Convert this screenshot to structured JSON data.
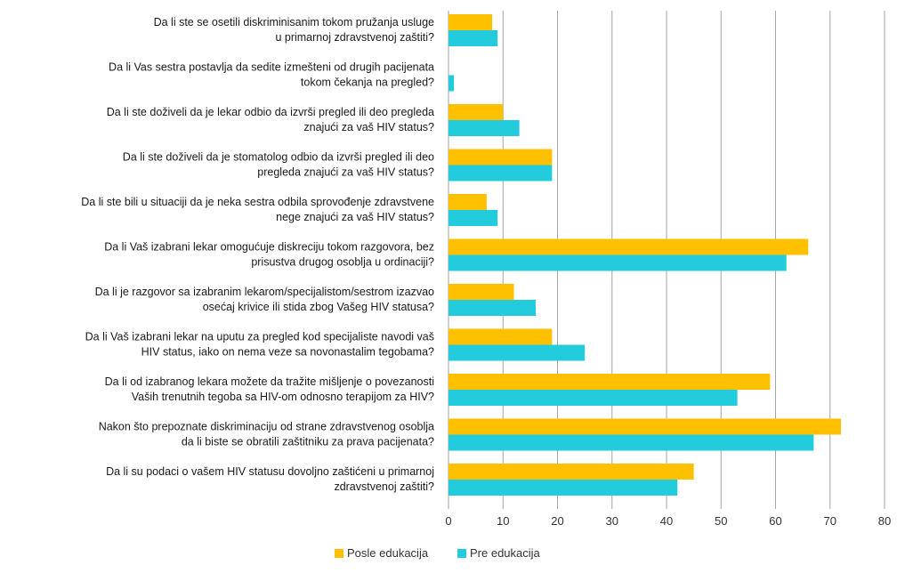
{
  "chart_data": {
    "type": "bar",
    "orientation": "horizontal",
    "title": "",
    "xlabel": "",
    "ylabel": "",
    "xlim": [
      0,
      80
    ],
    "xticks": [
      "0",
      "10",
      "20",
      "30",
      "40",
      "50",
      "60",
      "70",
      "80"
    ],
    "grid": true,
    "legend_position": "bottom",
    "categories": [
      [
        "Da li ste se osetili diskriminisanim tokom pružanja usluge",
        "u primarnoj zdravstvenoj zaštiti?"
      ],
      [
        "Da li Vas sestra postavlja da sedite izmešteni od drugih pacijenata",
        "tokom čekanja na pregled?"
      ],
      [
        "Da li ste doživeli da je lekar odbio da izvrši pregled ili deo pregleda",
        "znajući za vaš HIV status?"
      ],
      [
        "Da li ste doživeli da je stomatolog odbio da izvrši pregled ili deo",
        "pregleda znajući za vaš HIV status?"
      ],
      [
        "Da li ste bili u situaciji da je neka sestra odbila sprovođenje zdravstvene",
        "nege znajući za vaš HIV status?"
      ],
      [
        "Da li Vaš izabrani lekar omogućuje diskreciju tokom razgovora, bez",
        "prisustva drugog osoblja u ordinaciji?"
      ],
      [
        "Da li je razgovor sa izabranim lekarom/specijalistom/sestrom izazvao",
        "osećaj krivice ili stida zbog Vašeg HIV statusa?"
      ],
      [
        "Da li Vaš izabrani lekar na uputu za pregled kod specijaliste navodi vaš",
        "HIV status, iako on nema veze sa novonastalim tegobama?"
      ],
      [
        "Da li od izabranog lekara možete da tražite mišljenje o povezanosti",
        "Vaših trenutnih tegoba sa HIV-om odnosno terapijom za HIV?"
      ],
      [
        "Nakon što prepoznate diskriminaciju od strane zdravstvenog osoblja",
        "da li biste se obratili  zaštitniku za prava pacijenata?"
      ],
      [
        "Da li su podaci o vašem HIV statusu dovoljno zaštićeni u primarnoj",
        "zdravstvenoj zaštiti?"
      ]
    ],
    "series": [
      {
        "name": "Posle edukacija",
        "color": "#FFC000",
        "values": [
          8,
          0,
          10,
          19,
          7,
          66,
          12,
          19,
          59,
          72,
          45
        ]
      },
      {
        "name": "Pre edukacija",
        "color": "#22CCDD",
        "values": [
          9,
          1,
          13,
          19,
          9,
          62,
          16,
          25,
          53,
          67,
          42
        ]
      }
    ]
  }
}
